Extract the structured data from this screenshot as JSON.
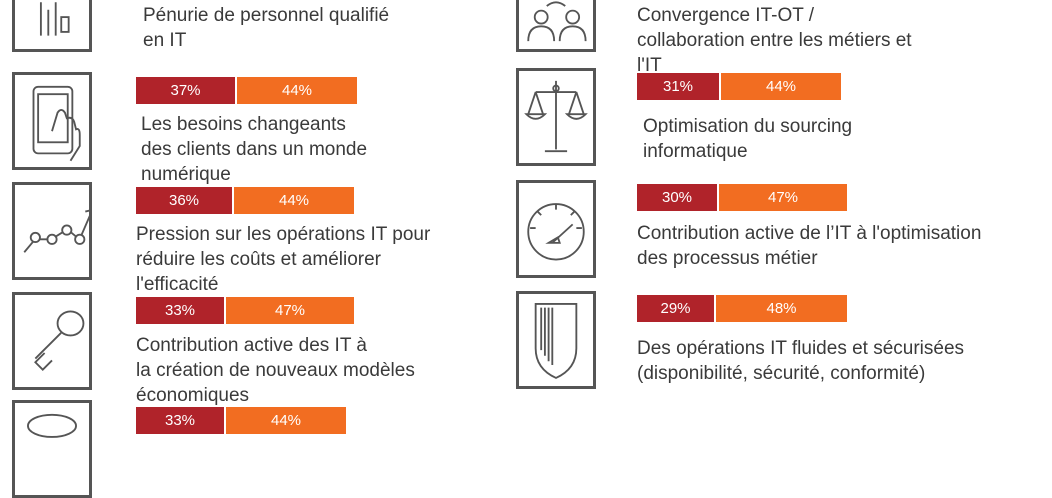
{
  "chart_data": {
    "type": "bar",
    "colors": {
      "series_a": "#b0232a",
      "series_b": "#f26d21",
      "icon_border": "#555555"
    },
    "items": [
      {
        "label": "Pénurie de personnel qualifié en IT",
        "icon": "person-icon",
        "values": []
      },
      {
        "label": "Les besoins changeants des clients dans un monde numérique",
        "icon": "tablet-hand-icon",
        "values": [
          37,
          44
        ],
        "display": [
          "37%",
          "44%"
        ]
      },
      {
        "label": "Pression sur les opérations IT pour réduire les coûts et améliorer l'efficacité",
        "icon": "trend-line-icon",
        "values": [
          36,
          44
        ],
        "display": [
          "36%",
          "44%"
        ]
      },
      {
        "label": "Contribution active des IT à la création de nouveaux modèles économiques",
        "icon": "key-icon",
        "values": [
          33,
          47
        ],
        "display": [
          "33%",
          "47%"
        ]
      },
      {
        "label": "",
        "icon": "circle-icon",
        "values": [
          33,
          44
        ],
        "display": [
          "33%",
          "44%"
        ]
      },
      {
        "label": "Convergence IT-OT / collaboration entre les métiers et l'IT",
        "icon": "people-exchange-icon",
        "values": []
      },
      {
        "label": "Optimisation du sourcing informatique",
        "icon": "scale-icon",
        "values": [
          31,
          44
        ],
        "display": [
          "31%",
          "44%"
        ]
      },
      {
        "label": "Contribution active de l’IT à l'optimisation des processus métier",
        "icon": "gauge-icon",
        "values": [
          30,
          47
        ],
        "display": [
          "30%",
          "47%"
        ]
      },
      {
        "label": "Des opérations IT fluides et sécurisées (disponibilité, sécurité, conformité)",
        "icon": "shield-icon",
        "values": [
          29,
          48
        ],
        "display": [
          "29%",
          "48%"
        ]
      }
    ]
  },
  "text": {
    "l0_a": "Pénurie de personnel qualifié",
    "l0_b": "en IT",
    "l1_a": "Les besoins changeants",
    "l1_b": "des clients dans un monde",
    "l1_c": "numérique",
    "l2_a": "Pression sur les opérations IT pour",
    "l2_b": "réduire les coûts et améliorer",
    "l2_c": "l'efficacité",
    "l3_a": "Contribution active des IT à",
    "l3_b": "la création de nouveaux modèles",
    "l3_c": "économiques",
    "r0_a": "Convergence IT-OT /",
    "r0_b": "collaboration entre les métiers et",
    "r0_c": "l'IT",
    "r1_a": "Optimisation du sourcing",
    "r1_b": "informatique",
    "r2_a": "Contribution active de l’IT à l'optimisation",
    "r2_b": "des processus métier",
    "r3_a": "Des opérations IT fluides et sécurisées",
    "r3_b": "(disponibilité, sécurité, conformité)"
  }
}
